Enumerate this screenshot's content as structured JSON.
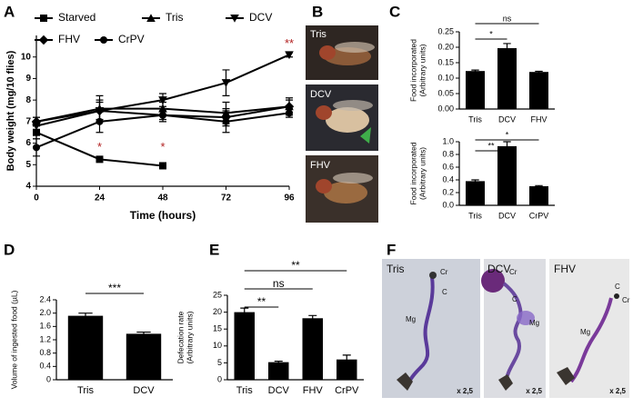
{
  "chart_data": [
    {
      "type": "line",
      "panel": "A",
      "xlabel": "Time (hours)",
      "ylabel": [
        "Body weight (mg/10 flies)"
      ],
      "x": [
        0,
        24,
        48,
        72,
        96
      ],
      "xlim": [
        0,
        96
      ],
      "xticks": [
        0,
        24,
        48,
        72,
        96
      ],
      "ylim": [
        4,
        11
      ],
      "yticks": [
        4,
        5,
        6,
        7,
        8,
        9,
        10
      ],
      "series": [
        {
          "name": "Starved",
          "color": "#000000",
          "marker": "square",
          "values": [
            6.5,
            5.25,
            4.95,
            null,
            null
          ],
          "errors": [
            0.3,
            0.1,
            0.1,
            null,
            null
          ]
        },
        {
          "name": "Tris",
          "color": "#000000",
          "marker": "triangle-up",
          "values": [
            7.0,
            7.6,
            7.6,
            7.4,
            7.7
          ],
          "errors": [
            0.2,
            0.6,
            0.3,
            0.5,
            0.4
          ]
        },
        {
          "name": "DCV",
          "color": "#000000",
          "marker": "triangle-down",
          "values": [
            6.8,
            7.5,
            8.0,
            8.8,
            10.1
          ],
          "errors": [
            0.2,
            0.4,
            0.3,
            0.6,
            0.1
          ]
        },
        {
          "name": "FHV",
          "color": "#000000",
          "marker": "diamond",
          "values": [
            7.0,
            7.5,
            7.3,
            7.2,
            7.7
          ],
          "errors": [
            0.2,
            0.5,
            0.3,
            0.4,
            0.3
          ]
        },
        {
          "name": "CrPV",
          "color": "#000000",
          "marker": "circle",
          "values": [
            5.8,
            7.0,
            7.3,
            7.0,
            7.4
          ],
          "errors": [
            0.4,
            0.5,
            0.2,
            0.5,
            0.2
          ]
        }
      ],
      "annotation_color": "#b22222",
      "annotations": [
        {
          "x": 24,
          "y": 5.8,
          "text": "*"
        },
        {
          "x": 48,
          "y": 5.8,
          "text": "*"
        },
        {
          "x": 96,
          "y": 10.6,
          "text": "**"
        }
      ]
    },
    {
      "type": "bar",
      "panel": "C",
      "ylabel": [
        "Food incorporated",
        "(Arbitrary units)"
      ],
      "color": "#000000",
      "categories": [
        "Tris",
        "DCV",
        "FHV"
      ],
      "values": [
        0.123,
        0.197,
        0.12
      ],
      "errors": [
        0.003,
        0.015,
        0.002
      ],
      "ylim": [
        0,
        0.25
      ],
      "yticks": [
        {
          "value": 0,
          "label": "0.00"
        },
        0.05,
        {
          "value": 0.1,
          "label": "0.10"
        },
        0.15,
        {
          "value": 0.2,
          "label": "0.20"
        },
        0.25
      ],
      "comparisons": [
        {
          "groups": [
            "Tris",
            "DCV"
          ],
          "label": "*"
        },
        {
          "groups": [
            "Tris",
            "FHV"
          ],
          "label": "ns"
        }
      ]
    },
    {
      "type": "bar",
      "ylabel": [
        "Food incorporated",
        "(Arbitrary units)"
      ],
      "color": "#000000",
      "categories": [
        "Tris",
        "DCV",
        "CrPV"
      ],
      "values": [
        0.38,
        0.93,
        0.3
      ],
      "errors": [
        0.02,
        0.07,
        0.01
      ],
      "ylim": [
        0,
        1.0
      ],
      "yticks": [
        {
          "value": 0,
          "label": "0.0"
        },
        0.2,
        0.4,
        0.6,
        0.8,
        {
          "value": 1,
          "label": "1.0"
        }
      ],
      "comparisons": [
        {
          "groups": [
            "Tris",
            "DCV"
          ],
          "label": "**"
        },
        {
          "groups": [
            "Tris",
            "CrPV"
          ],
          "label": "*"
        }
      ]
    },
    {
      "type": "bar",
      "panel": "D",
      "ylabel": [
        "Volume of ingested food (µL)"
      ],
      "color": "#000000",
      "categories": [
        "Tris",
        "DCV"
      ],
      "values": [
        1.92,
        1.38
      ],
      "errors": [
        0.08,
        0.05
      ],
      "ylim": [
        0,
        2.4
      ],
      "yticks": [
        0,
        0.4,
        0.8,
        1.2,
        1.6,
        {
          "value": 2,
          "label": "2.0"
        },
        2.4
      ],
      "comparisons": [
        {
          "groups": [
            "Tris",
            "DCV"
          ],
          "label": "***"
        }
      ]
    },
    {
      "type": "bar",
      "panel": "E",
      "ylabel": [
        "Defecation rate",
        "(Arbitrary units)"
      ],
      "color": "#000000",
      "categories": [
        "Tris",
        "DCV",
        "FHV",
        "CrPV"
      ],
      "values": [
        20,
        5.2,
        18.2,
        6
      ],
      "errors": [
        1.2,
        0.3,
        0.8,
        1.3
      ],
      "ylim": [
        0,
        25
      ],
      "yticks": [
        0,
        5,
        10,
        15,
        20,
        25
      ],
      "comparisons": [
        {
          "groups": [
            "Tris",
            "DCV"
          ],
          "label": "**"
        },
        {
          "groups": [
            "Tris",
            "FHV"
          ],
          "label": "ns"
        },
        {
          "groups": [
            "Tris",
            "CrPV"
          ],
          "label": "**"
        }
      ]
    }
  ],
  "photo_panels": [
    {
      "label": "B",
      "captions": [
        "Tris",
        "DCV",
        "FHV"
      ]
    },
    {
      "label": "F",
      "images": [
        {
          "caption": "Tris",
          "parts": [
            "Cr",
            "C",
            "Mg"
          ],
          "scale": "x 2,5"
        },
        {
          "caption": "DCV",
          "parts": [
            "Cr",
            "C",
            "Mg"
          ],
          "scale": "x 2,5"
        },
        {
          "caption": "FHV",
          "parts": [
            "C",
            "Cr",
            "Mg"
          ],
          "scale": "x 2,5"
        }
      ]
    }
  ]
}
